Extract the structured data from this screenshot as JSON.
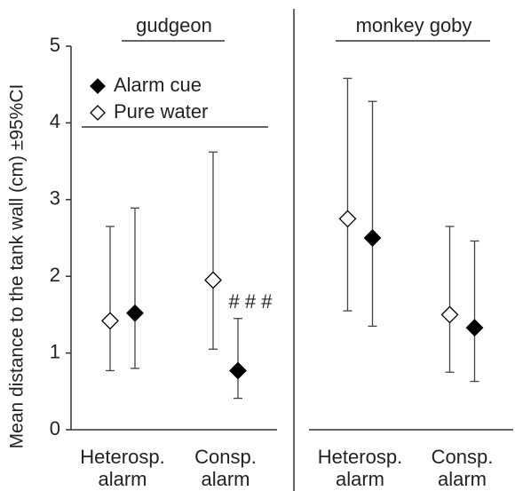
{
  "chart_data": {
    "type": "errorbar",
    "ylabel": "Mean distance to the tank wall (cm) ±95%CI",
    "ylim": [
      0,
      5
    ],
    "yticks": [
      0,
      1,
      2,
      3,
      4,
      5
    ],
    "annotation": "# # #",
    "panels": [
      {
        "title": "gudgeon",
        "categories": [
          "Heterosp. alarm",
          "Consp. alarm"
        ],
        "series": [
          {
            "name": "Alarm cue",
            "color": "#000000",
            "values": [
              1.52,
              0.77
            ],
            "lower": [
              0.8,
              0.41
            ],
            "upper": [
              2.89,
              1.45
            ]
          },
          {
            "name": "Pure water",
            "color": "#ffffff",
            "values": [
              1.42,
              1.95
            ],
            "lower": [
              0.77,
              1.05
            ],
            "upper": [
              2.65,
              3.62
            ]
          }
        ]
      },
      {
        "title": "monkey goby",
        "categories": [
          "Heterosp. alarm",
          "Consp. alarm"
        ],
        "series": [
          {
            "name": "Alarm cue",
            "color": "#000000",
            "values": [
              2.5,
              1.33
            ],
            "lower": [
              1.35,
              0.63
            ],
            "upper": [
              4.28,
              2.46
            ]
          },
          {
            "name": "Pure water",
            "color": "#ffffff",
            "values": [
              2.75,
              1.5
            ],
            "lower": [
              1.55,
              0.75
            ],
            "upper": [
              4.58,
              2.65
            ]
          }
        ]
      }
    ]
  }
}
